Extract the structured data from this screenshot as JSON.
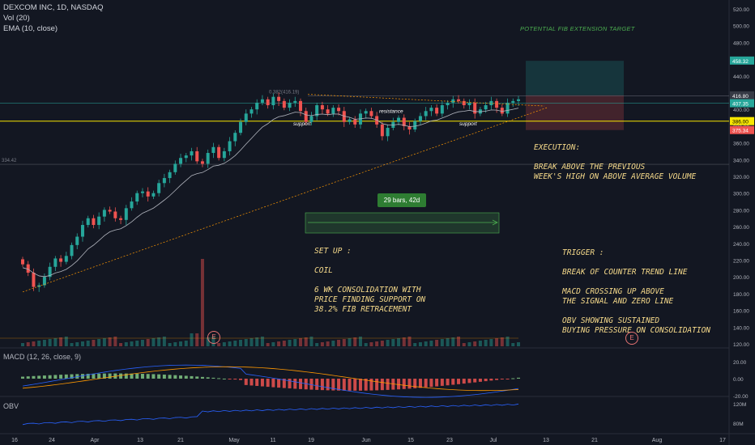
{
  "header": {
    "title": "DEXCOM INC, 1D, NASDAQ",
    "vol_label": "Vol (20)",
    "ema_label": "EMA (10, close)"
  },
  "annotations": {
    "fib_target": "POTENTIAL FIB EXTENSION TARGET",
    "fib_level_382": "0.382(416.19)",
    "fib_level_0": "334.42",
    "bars_range": "29 bars, 42d",
    "support_1": "support",
    "support_2": "support",
    "resistance": "resistance",
    "execution": "EXECUTION:\n\nBREAK ABOVE THE PREVIOUS\nWEEK'S HIGH ON ABOVE AVERAGE VOLUME",
    "setup": "SET UP :\n\nCOIL\n\n6 WK CONSOLIDATION WITH\nPRICE FINDING SUPPORT ON\n38.2% FIB RETRACEMENT",
    "trigger": "TRIGGER :\n\nBREAK OF COUNTER TREND LINE\n\nMACD CROSSING UP ABOVE\nTHE SIGNAL AND ZERO LINE\n\nOBV SHOWING SUSTAINED\nBUYING PRESSURE ON CONSOLIDATION",
    "earnings_1": "E",
    "earnings_2": "E"
  },
  "price_axis": {
    "ticks": [
      "520.00",
      "500.00",
      "480.00",
      "460.00",
      "440.00",
      "420.00",
      "400.00",
      "380.00",
      "360.00",
      "340.00",
      "320.00",
      "300.00",
      "280.00",
      "260.00",
      "240.00",
      "220.00",
      "200.00",
      "180.00",
      "160.00",
      "140.00",
      "120.00"
    ],
    "badges": [
      {
        "label": "458.32",
        "color": "#26a69a"
      },
      {
        "label": "416.80",
        "color": "#363a45"
      },
      {
        "label": "407.35",
        "color": "#26a69a"
      },
      {
        "label": "386.00",
        "color": "#f7e600",
        "text": "#000000"
      },
      {
        "label": "375.34",
        "color": "#ef5350"
      }
    ]
  },
  "macd": {
    "label": "MACD (12, 26, close, 9)",
    "ticks": [
      "20.00",
      "0.00",
      "-20.00"
    ]
  },
  "obv": {
    "label": "OBV",
    "ticks": [
      "120M",
      "80M"
    ]
  },
  "time_axis": {
    "ticks": [
      "16",
      "24",
      "Apr",
      "13",
      "21",
      "May",
      "11",
      "19",
      "Jun",
      "15",
      "23",
      "Jul",
      "13",
      "21",
      "Aug",
      "17"
    ]
  },
  "colors": {
    "up": "#26a69a",
    "down": "#ef5350",
    "ema": "#b2b5be",
    "fib": "#787b86",
    "trend": "#ff9800",
    "macd_line": "#2962ff",
    "signal_line": "#ff9800",
    "obv_line": "#2962ff"
  },
  "chart_data": {
    "type": "candlestick",
    "title": "DEXCOM INC, 1D, NASDAQ",
    "price_range": [
      120,
      520
    ],
    "closes": [
      215,
      205,
      188,
      190,
      200,
      212,
      222,
      218,
      225,
      238,
      248,
      262,
      270,
      262,
      272,
      280,
      278,
      270,
      268,
      282,
      290,
      300,
      302,
      296,
      300,
      312,
      318,
      325,
      335,
      342,
      345,
      350,
      338,
      335,
      348,
      355,
      342,
      350,
      362,
      372,
      385,
      395,
      400,
      408,
      412,
      405,
      415,
      410,
      402,
      408,
      410,
      398,
      385,
      392,
      405,
      400,
      395,
      402,
      398,
      385,
      388,
      382,
      395,
      398,
      392,
      382,
      368,
      378,
      385,
      390,
      380,
      376,
      386,
      392,
      398,
      402,
      395,
      405,
      408,
      412,
      410,
      405,
      408,
      395,
      400,
      405,
      410,
      402,
      395,
      408,
      410,
      412
    ]
  }
}
